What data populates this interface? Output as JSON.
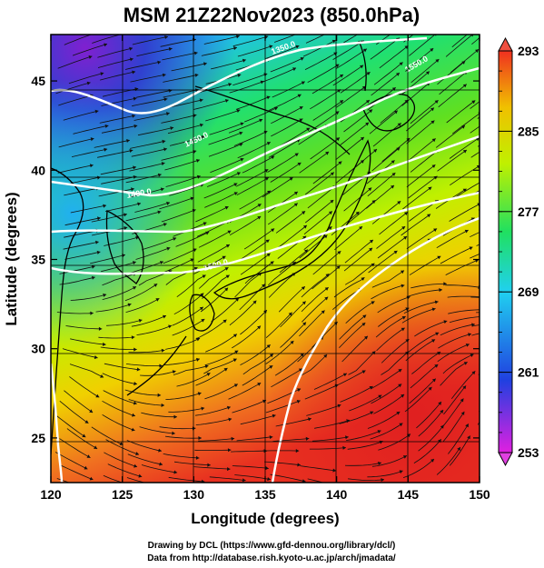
{
  "title": "MSM 21Z22Nov2023 (850.0hPa)",
  "xlabel": "Longitude (degrees)",
  "ylabel": "Latitude  (degrees)",
  "x_ticks": [
    "120",
    "125",
    "130",
    "135",
    "140",
    "145",
    "150"
  ],
  "y_ticks": [
    "25",
    "30",
    "35",
    "40",
    "45"
  ],
  "colorbar": {
    "ticks": [
      "293",
      "285",
      "277",
      "269",
      "261",
      "253"
    ],
    "min": 253,
    "max": 293,
    "colors": [
      "#e020e0",
      "#2040e0",
      "#20d0f0",
      "#20e060",
      "#c0f000",
      "#f0c000",
      "#f03020"
    ]
  },
  "contour_labels": [
    "1350.0",
    "1400.0",
    "1450.0",
    "1500.0",
    "1550.0"
  ],
  "credits": {
    "line1": "Drawing by DCL (https://www.gfd-dennou.org/library/dcl/)",
    "line2": "Data from http://database.rish.kyoto-u.ac.jp/arch/jmadata/"
  },
  "map": {
    "lon_range": [
      120,
      150
    ],
    "lat_range": [
      22.5,
      47.6
    ],
    "field": "temperature (K)",
    "overlays": [
      "geopotential height contours",
      "wind streamlines",
      "coastlines",
      "grid"
    ]
  }
}
